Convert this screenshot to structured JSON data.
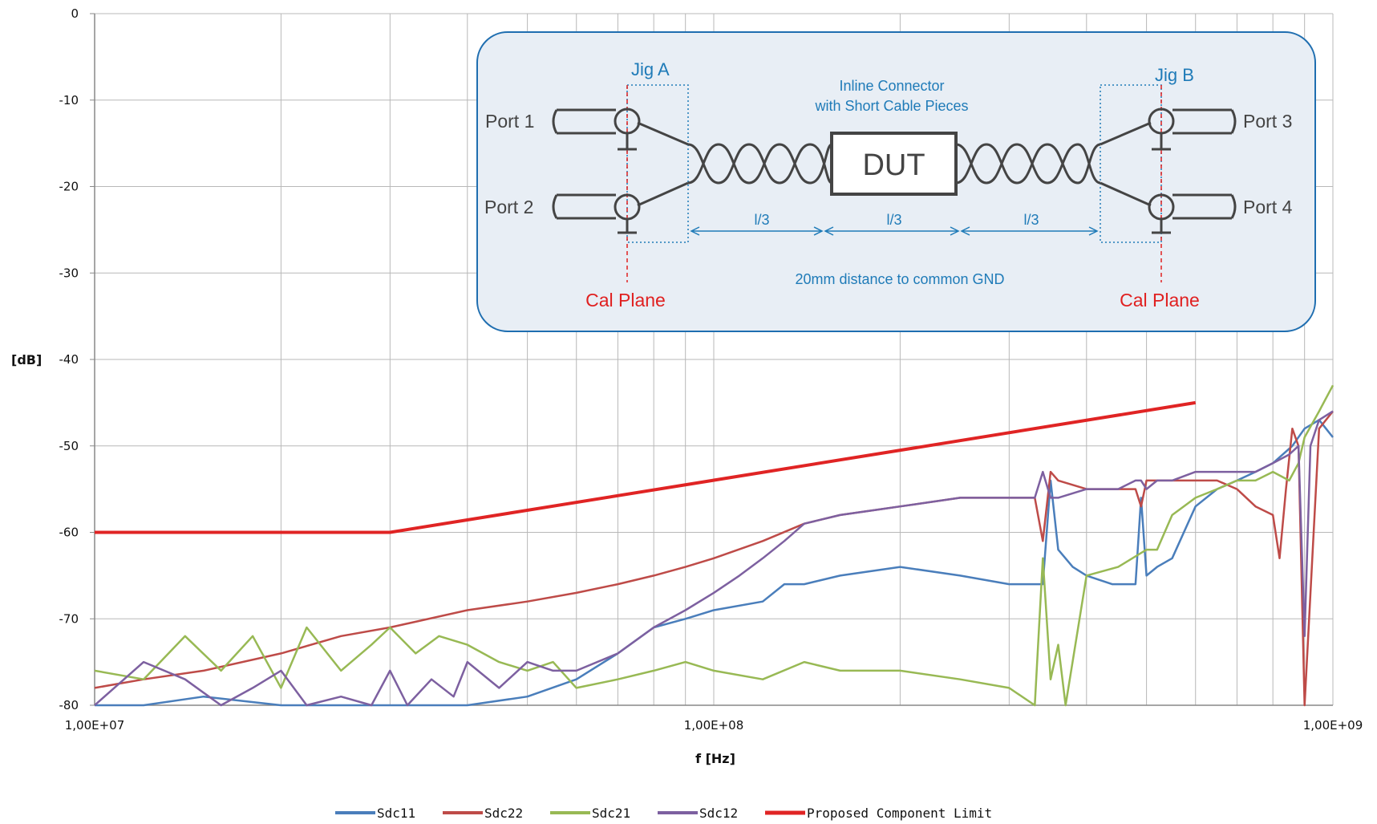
{
  "chart_data": {
    "type": "line",
    "x_scale": "log",
    "xlim": [
      10000000,
      1000000000
    ],
    "ylim": [
      -80,
      0
    ],
    "xlabel": "f [Hz]",
    "ylabel": "[dB]",
    "x_ticks": [
      "1,00E+07",
      "1,00E+08",
      "1,00E+09"
    ],
    "y_ticks": [
      "0",
      "-10",
      "-20",
      "-30",
      "-40",
      "-50",
      "-60",
      "-70",
      "-80"
    ],
    "grid": true,
    "legend_position": "bottom",
    "series": [
      {
        "name": "Sdc11",
        "color": "#4a7ebb",
        "x": [
          10000000,
          12000000,
          15000000,
          20000000,
          25000000,
          30000000,
          40000000,
          50000000,
          60000000,
          70000000,
          80000000,
          90000000,
          100000000,
          120000000,
          130000000,
          140000000,
          160000000,
          200000000,
          250000000,
          300000000,
          330000000,
          340000000,
          350000000,
          360000000,
          380000000,
          400000000,
          440000000,
          480000000,
          490000000,
          500000000,
          520000000,
          550000000,
          600000000,
          650000000,
          700000000,
          750000000,
          800000000,
          860000000,
          900000000,
          950000000,
          1000000000
        ],
        "y": [
          -80,
          -80,
          -79,
          -80,
          -80,
          -80,
          -80,
          -79,
          -77,
          -74,
          -71,
          -70,
          -69,
          -68,
          -66,
          -66,
          -65,
          -64,
          -65,
          -66,
          -66,
          -66,
          -54,
          -62,
          -64,
          -65,
          -66,
          -66,
          -56,
          -65,
          -64,
          -63,
          -57,
          -55,
          -54,
          -53,
          -52,
          -50,
          -48,
          -47,
          -49
        ]
      },
      {
        "name": "Sdc22",
        "color": "#be4b48",
        "x": [
          10000000,
          12000000,
          15000000,
          20000000,
          25000000,
          30000000,
          40000000,
          50000000,
          60000000,
          70000000,
          80000000,
          90000000,
          100000000,
          120000000,
          140000000,
          160000000,
          200000000,
          250000000,
          300000000,
          330000000,
          340000000,
          350000000,
          360000000,
          400000000,
          450000000,
          480000000,
          490000000,
          500000000,
          520000000,
          550000000,
          600000000,
          650000000,
          700000000,
          750000000,
          800000000,
          820000000,
          840000000,
          860000000,
          880000000,
          900000000,
          950000000,
          1000000000
        ],
        "y": [
          -78,
          -77,
          -76,
          -74,
          -72,
          -71,
          -69,
          -68,
          -67,
          -66,
          -65,
          -64,
          -63,
          -61,
          -59,
          -58,
          -57,
          -56,
          -56,
          -56,
          -61,
          -53,
          -54,
          -55,
          -55,
          -55,
          -57,
          -54,
          -54,
          -54,
          -54,
          -54,
          -55,
          -57,
          -58,
          -63,
          -55,
          -48,
          -50,
          -80,
          -48,
          -46
        ]
      },
      {
        "name": "Sdc21",
        "color": "#98b954",
        "x": [
          10000000,
          12000000,
          14000000,
          16000000,
          18000000,
          20000000,
          22000000,
          25000000,
          28000000,
          30000000,
          33000000,
          36000000,
          40000000,
          45000000,
          50000000,
          55000000,
          60000000,
          70000000,
          80000000,
          90000000,
          100000000,
          120000000,
          140000000,
          160000000,
          200000000,
          250000000,
          300000000,
          330000000,
          340000000,
          350000000,
          360000000,
          370000000,
          400000000,
          450000000,
          500000000,
          520000000,
          550000000,
          600000000,
          650000000,
          700000000,
          750000000,
          800000000,
          850000000,
          880000000,
          900000000,
          950000000,
          1000000000
        ],
        "y": [
          -76,
          -77,
          -72,
          -76,
          -72,
          -78,
          -71,
          -76,
          -73,
          -71,
          -74,
          -72,
          -73,
          -75,
          -76,
          -75,
          -78,
          -77,
          -76,
          -75,
          -76,
          -77,
          -75,
          -76,
          -76,
          -77,
          -78,
          -80,
          -63,
          -77,
          -73,
          -80,
          -65,
          -64,
          -62,
          -62,
          -58,
          -56,
          -55,
          -54,
          -54,
          -53,
          -54,
          -52,
          -49,
          -46,
          -43
        ]
      },
      {
        "name": "Sdc12",
        "color": "#7d60a0",
        "x": [
          10000000,
          12000000,
          14000000,
          16000000,
          18000000,
          20000000,
          22000000,
          25000000,
          28000000,
          30000000,
          32000000,
          35000000,
          38000000,
          40000000,
          45000000,
          50000000,
          55000000,
          60000000,
          70000000,
          80000000,
          90000000,
          100000000,
          110000000,
          120000000,
          130000000,
          140000000,
          160000000,
          200000000,
          250000000,
          300000000,
          330000000,
          340000000,
          350000000,
          360000000,
          400000000,
          450000000,
          480000000,
          490000000,
          500000000,
          520000000,
          550000000,
          600000000,
          650000000,
          700000000,
          750000000,
          800000000,
          850000000,
          880000000,
          900000000,
          920000000,
          950000000,
          1000000000
        ],
        "y": [
          -80,
          -75,
          -77,
          -80,
          -78,
          -76,
          -80,
          -79,
          -80,
          -76,
          -80,
          -77,
          -79,
          -75,
          -78,
          -75,
          -76,
          -76,
          -74,
          -71,
          -69,
          -67,
          -65,
          -63,
          -61,
          -59,
          -58,
          -57,
          -56,
          -56,
          -56,
          -53,
          -56,
          -56,
          -55,
          -55,
          -54,
          -54,
          -55,
          -54,
          -54,
          -53,
          -53,
          -53,
          -53,
          -52,
          -51,
          -50,
          -72,
          -50,
          -47,
          -46
        ]
      },
      {
        "name": "Proposed Component Limit",
        "color": "#e02424",
        "x": [
          10000000,
          30000000,
          600000000
        ],
        "y": [
          -60,
          -60,
          -45
        ]
      }
    ]
  },
  "inset": {
    "jig_a": "Jig A",
    "jig_b": "Jig B",
    "port1": "Port 1",
    "port2": "Port 2",
    "port3": "Port 3",
    "port4": "Port 4",
    "dut": "DUT",
    "connector_line1": "Inline Connector",
    "connector_line2": "with Short Cable Pieces",
    "segment_label": "l/3",
    "gnd_note": "20mm distance to common GND",
    "cal_plane": "Cal Plane"
  }
}
